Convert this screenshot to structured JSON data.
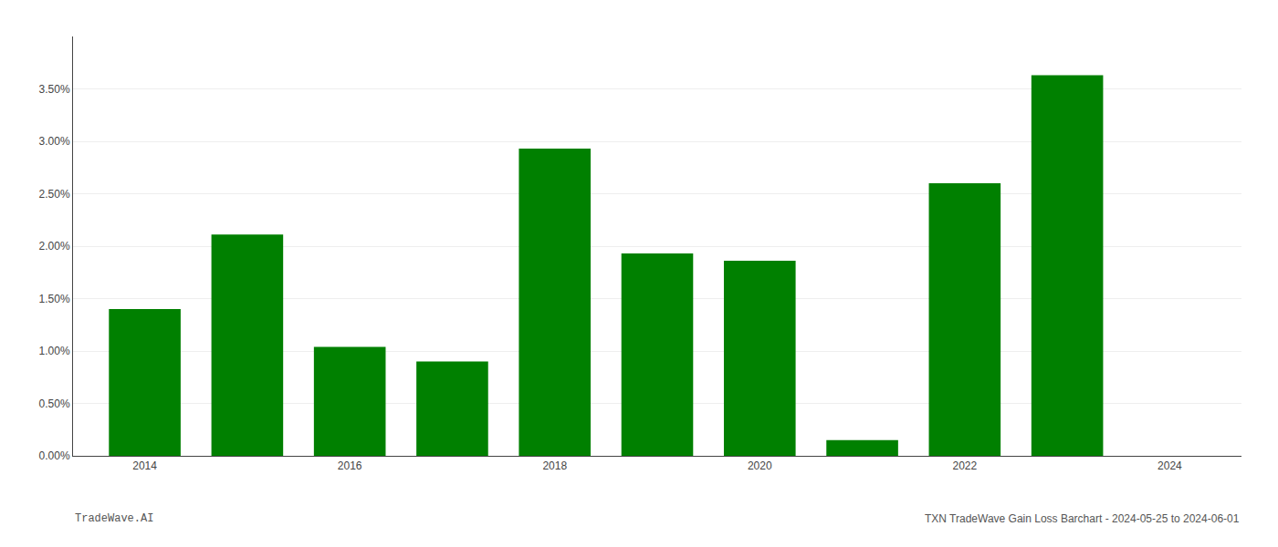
{
  "chart_data": {
    "type": "bar",
    "x": [
      2014,
      2015,
      2016,
      2017,
      2018,
      2019,
      2020,
      2021,
      2022,
      2023
    ],
    "values": [
      0.014,
      0.0211,
      0.0104,
      0.009,
      0.0293,
      0.0193,
      0.0186,
      0.0015,
      0.026,
      0.0363
    ],
    "color": "#008000",
    "xlim": [
      2013.3,
      2024.7
    ],
    "xticks": [
      2014,
      2016,
      2018,
      2020,
      2022,
      2024
    ],
    "ylim": [
      0.0,
      0.04
    ],
    "yticks": [
      {
        "value": 0.0,
        "label": "0.00%"
      },
      {
        "value": 0.005,
        "label": "0.50%"
      },
      {
        "value": 0.01,
        "label": "1.00%"
      },
      {
        "value": 0.015,
        "label": "1.50%"
      },
      {
        "value": 0.02,
        "label": "2.00%"
      },
      {
        "value": 0.025,
        "label": "2.50%"
      },
      {
        "value": 0.03,
        "label": "3.00%"
      },
      {
        "value": 0.035,
        "label": "3.50%"
      }
    ],
    "grid": true,
    "annotations": [
      "TradeWave.AI",
      "TXN TradeWave Gain Loss Barchart - 2024-05-25 to 2024-06-01"
    ]
  }
}
